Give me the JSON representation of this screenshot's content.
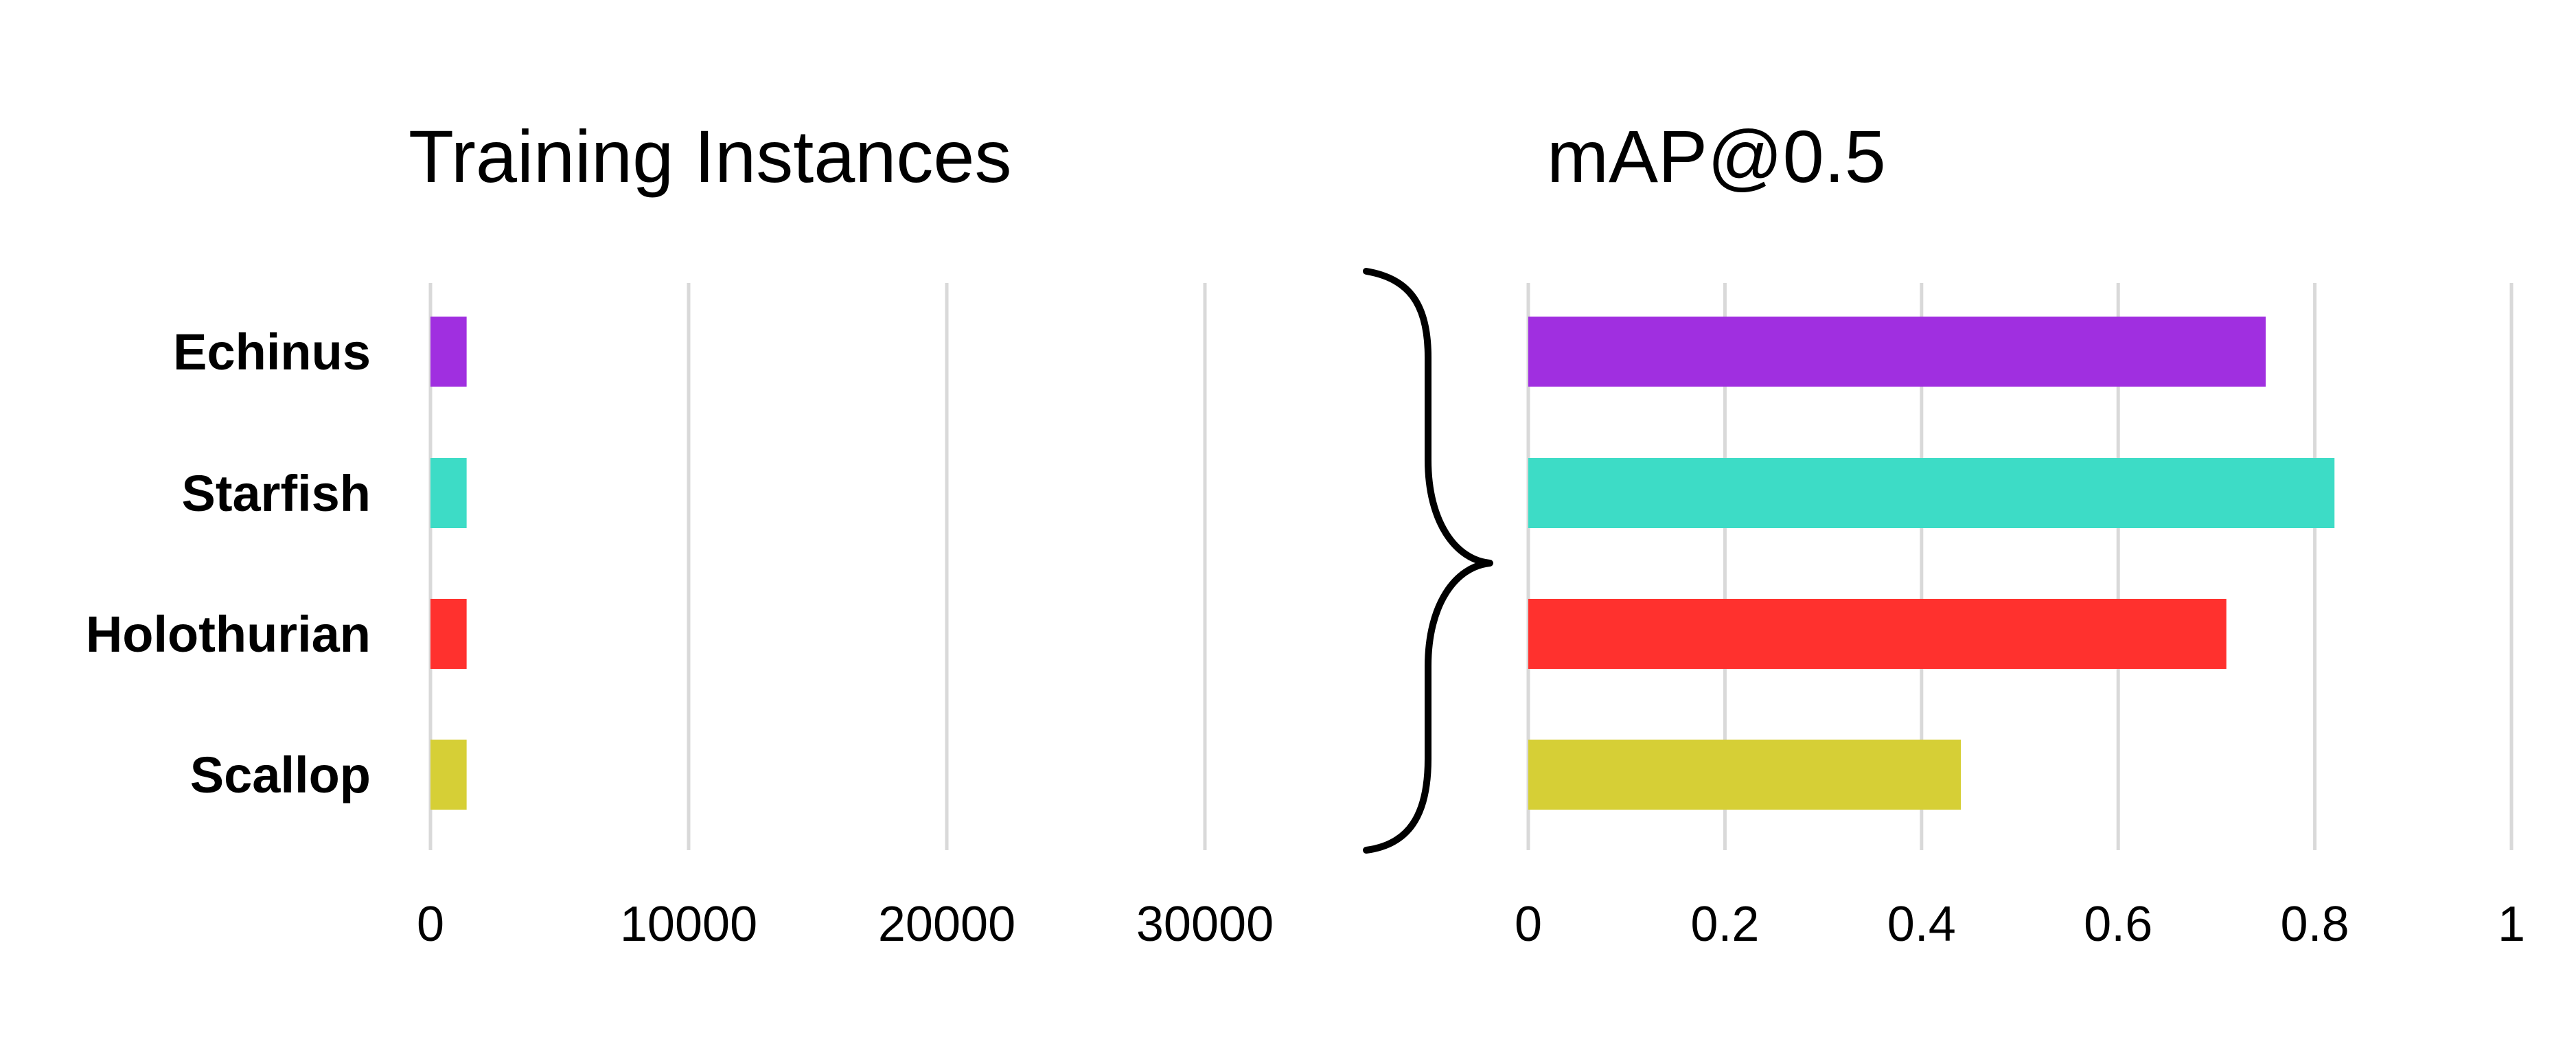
{
  "chart_data": [
    {
      "type": "bar",
      "orientation": "horizontal",
      "title": "Training Instances",
      "categories": [
        "Echinus",
        "Starfish",
        "Holothurian",
        "Scallop"
      ],
      "values": [
        1400,
        1400,
        1400,
        1400
      ],
      "colors": [
        "#a02fe0",
        "#3ddcc6",
        "#ff312e",
        "#d6cf36"
      ],
      "xlim": [
        0,
        33000
      ],
      "xticks": [
        "0",
        "10000",
        "20000",
        "30000"
      ],
      "grid": true
    },
    {
      "type": "bar",
      "orientation": "horizontal",
      "title": "mAP@0.5",
      "categories": [
        "Echinus",
        "Starfish",
        "Holothurian",
        "Scallop"
      ],
      "values": [
        0.75,
        0.82,
        0.71,
        0.44
      ],
      "colors": [
        "#a02fe0",
        "#3ddcc6",
        "#ff312e",
        "#d6cf36"
      ],
      "xlim": [
        0,
        1
      ],
      "xticks": [
        "0",
        "0.2",
        "0.4",
        "0.6",
        "0.8",
        "1"
      ],
      "grid": true
    }
  ]
}
